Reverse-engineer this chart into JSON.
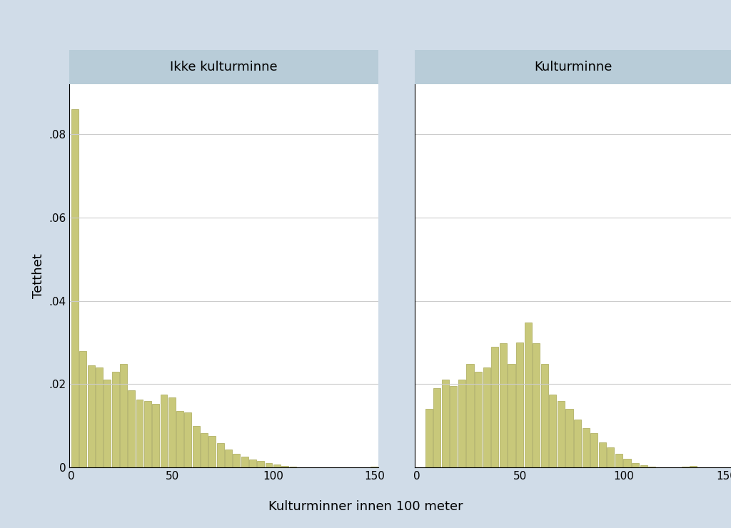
{
  "title_left": "Ikke kulturminne",
  "title_right": "Kulturminne",
  "xlabel": "Kulturminner innen 100 meter",
  "ylabel": "Tetthet",
  "bar_color": "#c8c87a",
  "bar_edgecolor": "#a8a855",
  "background_color": "#d0dce8",
  "plot_bg_color": "#ffffff",
  "title_bg_color": "#b8ccd8",
  "xlim": [
    -1,
    152
  ],
  "ylim": [
    0,
    0.092
  ],
  "yticks": [
    0,
    0.02,
    0.04,
    0.06,
    0.08
  ],
  "xticks": [
    0,
    50,
    100,
    150
  ],
  "bin_width": 4,
  "left_bars": [
    0.086,
    0.028,
    0.0245,
    0.024,
    0.021,
    0.023,
    0.0248,
    0.0185,
    0.0163,
    0.016,
    0.0152,
    0.0175,
    0.0168,
    0.0135,
    0.0132,
    0.01,
    0.0082,
    0.0075,
    0.0058,
    0.0042,
    0.0032,
    0.0025,
    0.0018,
    0.0015,
    0.001,
    0.0007,
    0.0004,
    0.0002,
    0.0,
    0.0,
    0.0,
    0.0,
    0.0,
    0.0,
    0.0,
    0.0,
    0.0,
    0.0002
  ],
  "right_bars": [
    0.0,
    0.014,
    0.019,
    0.021,
    0.0195,
    0.021,
    0.0248,
    0.023,
    0.024,
    0.029,
    0.0298,
    0.0248,
    0.03,
    0.0348,
    0.0298,
    0.0248,
    0.0175,
    0.016,
    0.014,
    0.0115,
    0.0095,
    0.0082,
    0.006,
    0.0048,
    0.0032,
    0.002,
    0.001,
    0.0005,
    0.0002,
    0.0,
    0.0,
    0.0,
    0.0002,
    0.0004
  ]
}
